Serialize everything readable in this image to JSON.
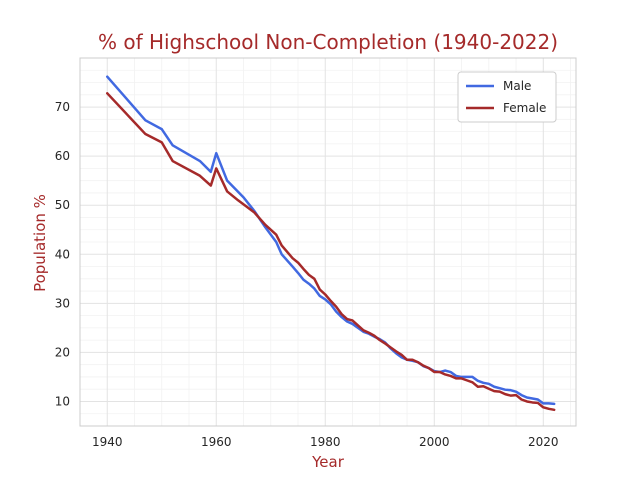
{
  "chart_data": {
    "type": "line",
    "title": "% of Highschool Non-Completion (1940-2022)",
    "xlabel": "Year",
    "ylabel": "Population %",
    "xlim": [
      1935,
      2026
    ],
    "ylim": [
      5,
      80
    ],
    "xticks": [
      1940,
      1960,
      1980,
      2000,
      2020
    ],
    "yticks": [
      10,
      20,
      30,
      40,
      50,
      60,
      70
    ],
    "grid": true,
    "legend_position": "top-right",
    "colors": {
      "title": "#a52a2a",
      "axis_label": "#a52a2a",
      "Male": "#4169e1",
      "Female": "#a52a2a"
    },
    "series": [
      {
        "name": "Male",
        "x": [
          1940,
          1947,
          1950,
          1952,
          1957,
          1959,
          1960,
          1962,
          1965,
          1967,
          1969,
          1971,
          1972,
          1974,
          1975,
          1976,
          1977,
          1978,
          1979,
          1980,
          1981,
          1982,
          1983,
          1984,
          1985,
          1986,
          1987,
          1988,
          1989,
          1990,
          1991,
          1992,
          1993,
          1994,
          1995,
          1996,
          1997,
          1998,
          1999,
          2000,
          2001,
          2002,
          2003,
          2004,
          2005,
          2006,
          2007,
          2008,
          2009,
          2010,
          2011,
          2012,
          2013,
          2014,
          2015,
          2016,
          2017,
          2018,
          2019,
          2020,
          2021,
          2022
        ],
        "values": [
          76.2,
          67.3,
          65.5,
          62.2,
          59.0,
          56.8,
          60.6,
          55.0,
          51.6,
          48.8,
          45.5,
          42.5,
          40.0,
          37.5,
          36.2,
          34.8,
          34.0,
          33.0,
          31.5,
          30.8,
          29.8,
          28.3,
          27.2,
          26.3,
          25.8,
          25.0,
          24.2,
          23.8,
          23.2,
          22.7,
          22.0,
          20.8,
          19.8,
          19.0,
          18.5,
          18.3,
          18.0,
          17.2,
          16.8,
          16.2,
          16.0,
          16.3,
          16.0,
          15.2,
          15.0,
          15.0,
          15.0,
          14.2,
          13.8,
          13.6,
          13.0,
          12.7,
          12.4,
          12.3,
          12.0,
          11.3,
          10.8,
          10.6,
          10.4,
          9.6,
          9.6,
          9.5
        ]
      },
      {
        "name": "Female",
        "x": [
          1940,
          1947,
          1950,
          1952,
          1957,
          1959,
          1960,
          1962,
          1964,
          1967,
          1969,
          1971,
          1972,
          1974,
          1975,
          1976,
          1977,
          1978,
          1979,
          1980,
          1981,
          1982,
          1983,
          1984,
          1985,
          1986,
          1987,
          1988,
          1989,
          1990,
          1991,
          1992,
          1993,
          1994,
          1995,
          1996,
          1997,
          1998,
          1999,
          2000,
          2001,
          2002,
          2003,
          2004,
          2005,
          2006,
          2007,
          2008,
          2009,
          2010,
          2011,
          2012,
          2013,
          2014,
          2015,
          2016,
          2017,
          2018,
          2019,
          2020,
          2021,
          2022
        ],
        "values": [
          72.8,
          64.5,
          62.8,
          59.0,
          56.0,
          54.0,
          57.5,
          52.8,
          51.0,
          48.5,
          46.0,
          44.0,
          41.8,
          39.2,
          38.3,
          37.0,
          35.8,
          35.0,
          32.8,
          31.8,
          30.5,
          29.3,
          27.8,
          26.8,
          26.5,
          25.5,
          24.5,
          24.0,
          23.4,
          22.5,
          21.8,
          21.0,
          20.2,
          19.5,
          18.5,
          18.5,
          18.0,
          17.3,
          16.8,
          16.0,
          16.0,
          15.5,
          15.2,
          14.7,
          14.7,
          14.3,
          13.9,
          13.0,
          13.1,
          12.6,
          12.1,
          12.0,
          11.5,
          11.2,
          11.3,
          10.4,
          10.0,
          9.8,
          9.7,
          8.8,
          8.5,
          8.3
        ]
      }
    ]
  }
}
